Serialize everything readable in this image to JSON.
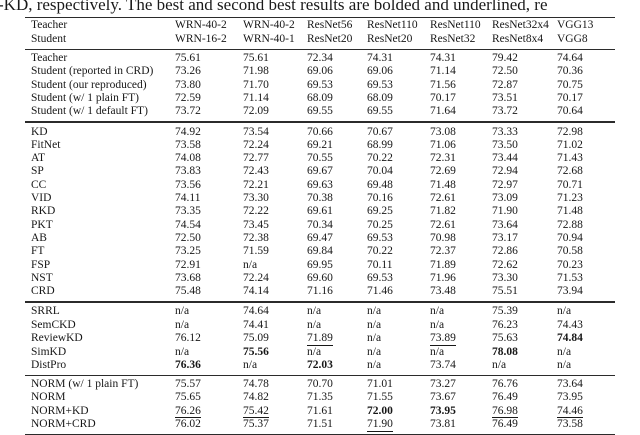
{
  "caption": {
    "left_fragment": "-",
    "text": "KD, respectively. The best and second best results are bolded and underlined, re"
  },
  "table": {
    "header": {
      "teacher_row_label": "Teacher",
      "student_row_label": "Student",
      "columns": [
        {
          "teacher": "WRN-40-2",
          "student": "WRN-16-2"
        },
        {
          "teacher": "WRN-40-2",
          "student": "WRN-40-1"
        },
        {
          "teacher": "ResNet56",
          "student": "ResNet20"
        },
        {
          "teacher": "ResNet110",
          "student": "ResNet20"
        },
        {
          "teacher": "ResNet110",
          "student": "ResNet32"
        },
        {
          "teacher": "ResNet32x4",
          "student": "ResNet8x4"
        },
        {
          "teacher": "VGG13",
          "student": "VGG8"
        }
      ]
    },
    "sections": [
      {
        "name": "baselines",
        "rows": [
          {
            "label": "Teacher",
            "values": [
              "75.61",
              "75.61",
              "72.34",
              "74.31",
              "74.31",
              "79.42",
              "74.64"
            ]
          },
          {
            "label": "Student (reported in CRD)",
            "values": [
              "73.26",
              "71.98",
              "69.06",
              "69.06",
              "71.14",
              "72.50",
              "70.36"
            ]
          },
          {
            "label": "Student (our reproduced)",
            "values": [
              "73.80",
              "71.70",
              "69.53",
              "69.53",
              "71.56",
              "72.87",
              "70.75"
            ]
          },
          {
            "label": "Student (w/ 1 plain FT)",
            "values": [
              "72.59",
              "71.14",
              "68.09",
              "68.09",
              "70.17",
              "73.51",
              "70.17"
            ]
          },
          {
            "label": "Student (w/ 1 default FT)",
            "values": [
              "73.72",
              "72.09",
              "69.55",
              "69.55",
              "71.64",
              "73.72",
              "70.64"
            ]
          }
        ]
      },
      {
        "name": "classic-methods",
        "rows": [
          {
            "label": "KD",
            "values": [
              "74.92",
              "73.54",
              "70.66",
              "70.67",
              "73.08",
              "73.33",
              "72.98"
            ]
          },
          {
            "label": "FitNet",
            "values": [
              "73.58",
              "72.24",
              "69.21",
              "68.99",
              "71.06",
              "73.50",
              "71.02"
            ]
          },
          {
            "label": "AT",
            "values": [
              "74.08",
              "72.77",
              "70.55",
              "70.22",
              "72.31",
              "73.44",
              "71.43"
            ]
          },
          {
            "label": "SP",
            "values": [
              "73.83",
              "72.43",
              "69.67",
              "70.04",
              "72.69",
              "72.94",
              "72.68"
            ]
          },
          {
            "label": "CC",
            "values": [
              "73.56",
              "72.21",
              "69.63",
              "69.48",
              "71.48",
              "72.97",
              "70.71"
            ]
          },
          {
            "label": "VID",
            "values": [
              "74.11",
              "73.30",
              "70.38",
              "70.16",
              "72.61",
              "73.09",
              "71.23"
            ]
          },
          {
            "label": "RKD",
            "values": [
              "73.35",
              "72.22",
              "69.61",
              "69.25",
              "71.82",
              "71.90",
              "71.48"
            ]
          },
          {
            "label": "PKT",
            "values": [
              "74.54",
              "73.45",
              "70.34",
              "70.25",
              "72.61",
              "73.64",
              "72.88"
            ]
          },
          {
            "label": "AB",
            "values": [
              "72.50",
              "72.38",
              "69.47",
              "69.53",
              "70.98",
              "73.17",
              "70.94"
            ]
          },
          {
            "label": "FT",
            "values": [
              "73.25",
              "71.59",
              "69.84",
              "70.22",
              "72.37",
              "72.86",
              "70.58"
            ]
          },
          {
            "label": "FSP",
            "values": [
              "72.91",
              "n/a",
              "69.95",
              "70.11",
              "71.89",
              "72.62",
              "70.23"
            ]
          },
          {
            "label": "NST",
            "values": [
              "73.68",
              "72.24",
              "69.60",
              "69.53",
              "71.96",
              "73.30",
              "71.53"
            ]
          },
          {
            "label": "CRD",
            "values": [
              "75.48",
              "74.14",
              "71.16",
              "71.46",
              "73.48",
              "75.51",
              "73.94"
            ]
          }
        ]
      },
      {
        "name": "recent-methods",
        "rows": [
          {
            "label": "SRRL",
            "values": [
              "n/a",
              "74.64",
              "n/a",
              "n/a",
              "n/a",
              "75.39",
              "n/a"
            ]
          },
          {
            "label": "SemCKD",
            "values": [
              "n/a",
              "74.41",
              "n/a",
              "n/a",
              "n/a",
              "76.23",
              "74.43"
            ]
          },
          {
            "label": "ReviewKD",
            "values": [
              "76.12",
              "75.09",
              "71.89",
              "n/a",
              "73.89",
              "75.63",
              "74.84"
            ],
            "underline": [
              2,
              4
            ],
            "bold": [
              6
            ]
          },
          {
            "label": "SimKD",
            "values": [
              "n/a",
              "75.56",
              "n/a",
              "n/a",
              "n/a",
              "78.08",
              "n/a"
            ],
            "bold": [
              1,
              5
            ]
          },
          {
            "label": "DistPro",
            "values": [
              "76.36",
              "n/a",
              "72.03",
              "n/a",
              "73.74",
              "n/a",
              "n/a"
            ],
            "bold": [
              0,
              2
            ]
          }
        ]
      },
      {
        "name": "norm-methods",
        "rows": [
          {
            "label": "NORM (w/ 1 plain FT)",
            "values": [
              "75.57",
              "74.78",
              "70.70",
              "71.01",
              "73.27",
              "76.76",
              "73.64"
            ]
          },
          {
            "label": "NORM",
            "values": [
              "75.65",
              "74.82",
              "71.35",
              "71.55",
              "73.67",
              "76.49",
              "73.95"
            ]
          },
          {
            "label": "NORM+KD",
            "values": [
              "76.26",
              "75.42",
              "71.61",
              "72.00",
              "73.95",
              "76.98",
              "74.46"
            ],
            "underline": [
              0,
              1,
              5,
              6
            ],
            "bold": [
              3,
              4
            ]
          },
          {
            "label": "NORM+CRD",
            "values": [
              "76.02",
              "75.37",
              "71.51",
              "71.90",
              "73.81",
              "76.49",
              "73.58"
            ],
            "underline": [
              3
            ]
          }
        ]
      }
    ]
  }
}
